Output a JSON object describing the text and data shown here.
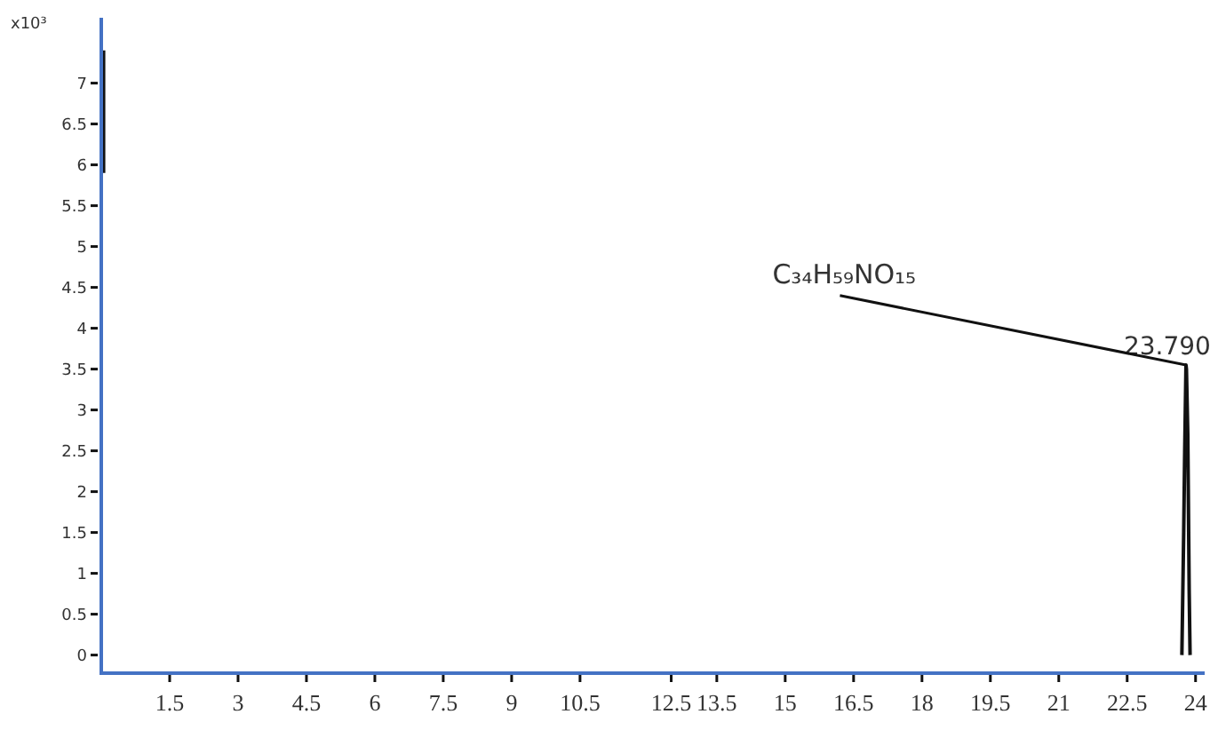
{
  "chart_data": {
    "type": "line",
    "ylabel": "x10³",
    "series": [
      {
        "color": "#111111",
        "x": [
          0.05,
          0.05,
          0.06,
          23.7,
          23.74,
          23.76,
          23.79,
          23.8,
          23.83,
          23.86,
          23.88
        ],
        "values": [
          5.9,
          7.4,
          null,
          0,
          1.5,
          2.4,
          3.55,
          3.5,
          2.7,
          0.8,
          0
        ]
      }
    ],
    "xlim": [
      0,
      24.2
    ],
    "ylim": [
      -0.2,
      7.8
    ],
    "xticks": [
      1.5,
      3,
      4.5,
      6,
      7.5,
      9,
      10.5,
      12.5,
      13.5,
      15,
      16.5,
      18,
      19.5,
      21,
      22.5,
      24
    ],
    "yticks": [
      0,
      0.5,
      1,
      1.5,
      2,
      2.5,
      3,
      3.5,
      4,
      4.5,
      5,
      5.5,
      6,
      6.5,
      7
    ],
    "annotations": [
      {
        "text": "23.790",
        "x": 23.79,
        "y": 3.55
      },
      {
        "text": "C₃₄H₅₉NO₁₅",
        "x": 23.79,
        "y": 3.55
      }
    ],
    "grid": false,
    "marker": "none",
    "line_style": "solid"
  }
}
